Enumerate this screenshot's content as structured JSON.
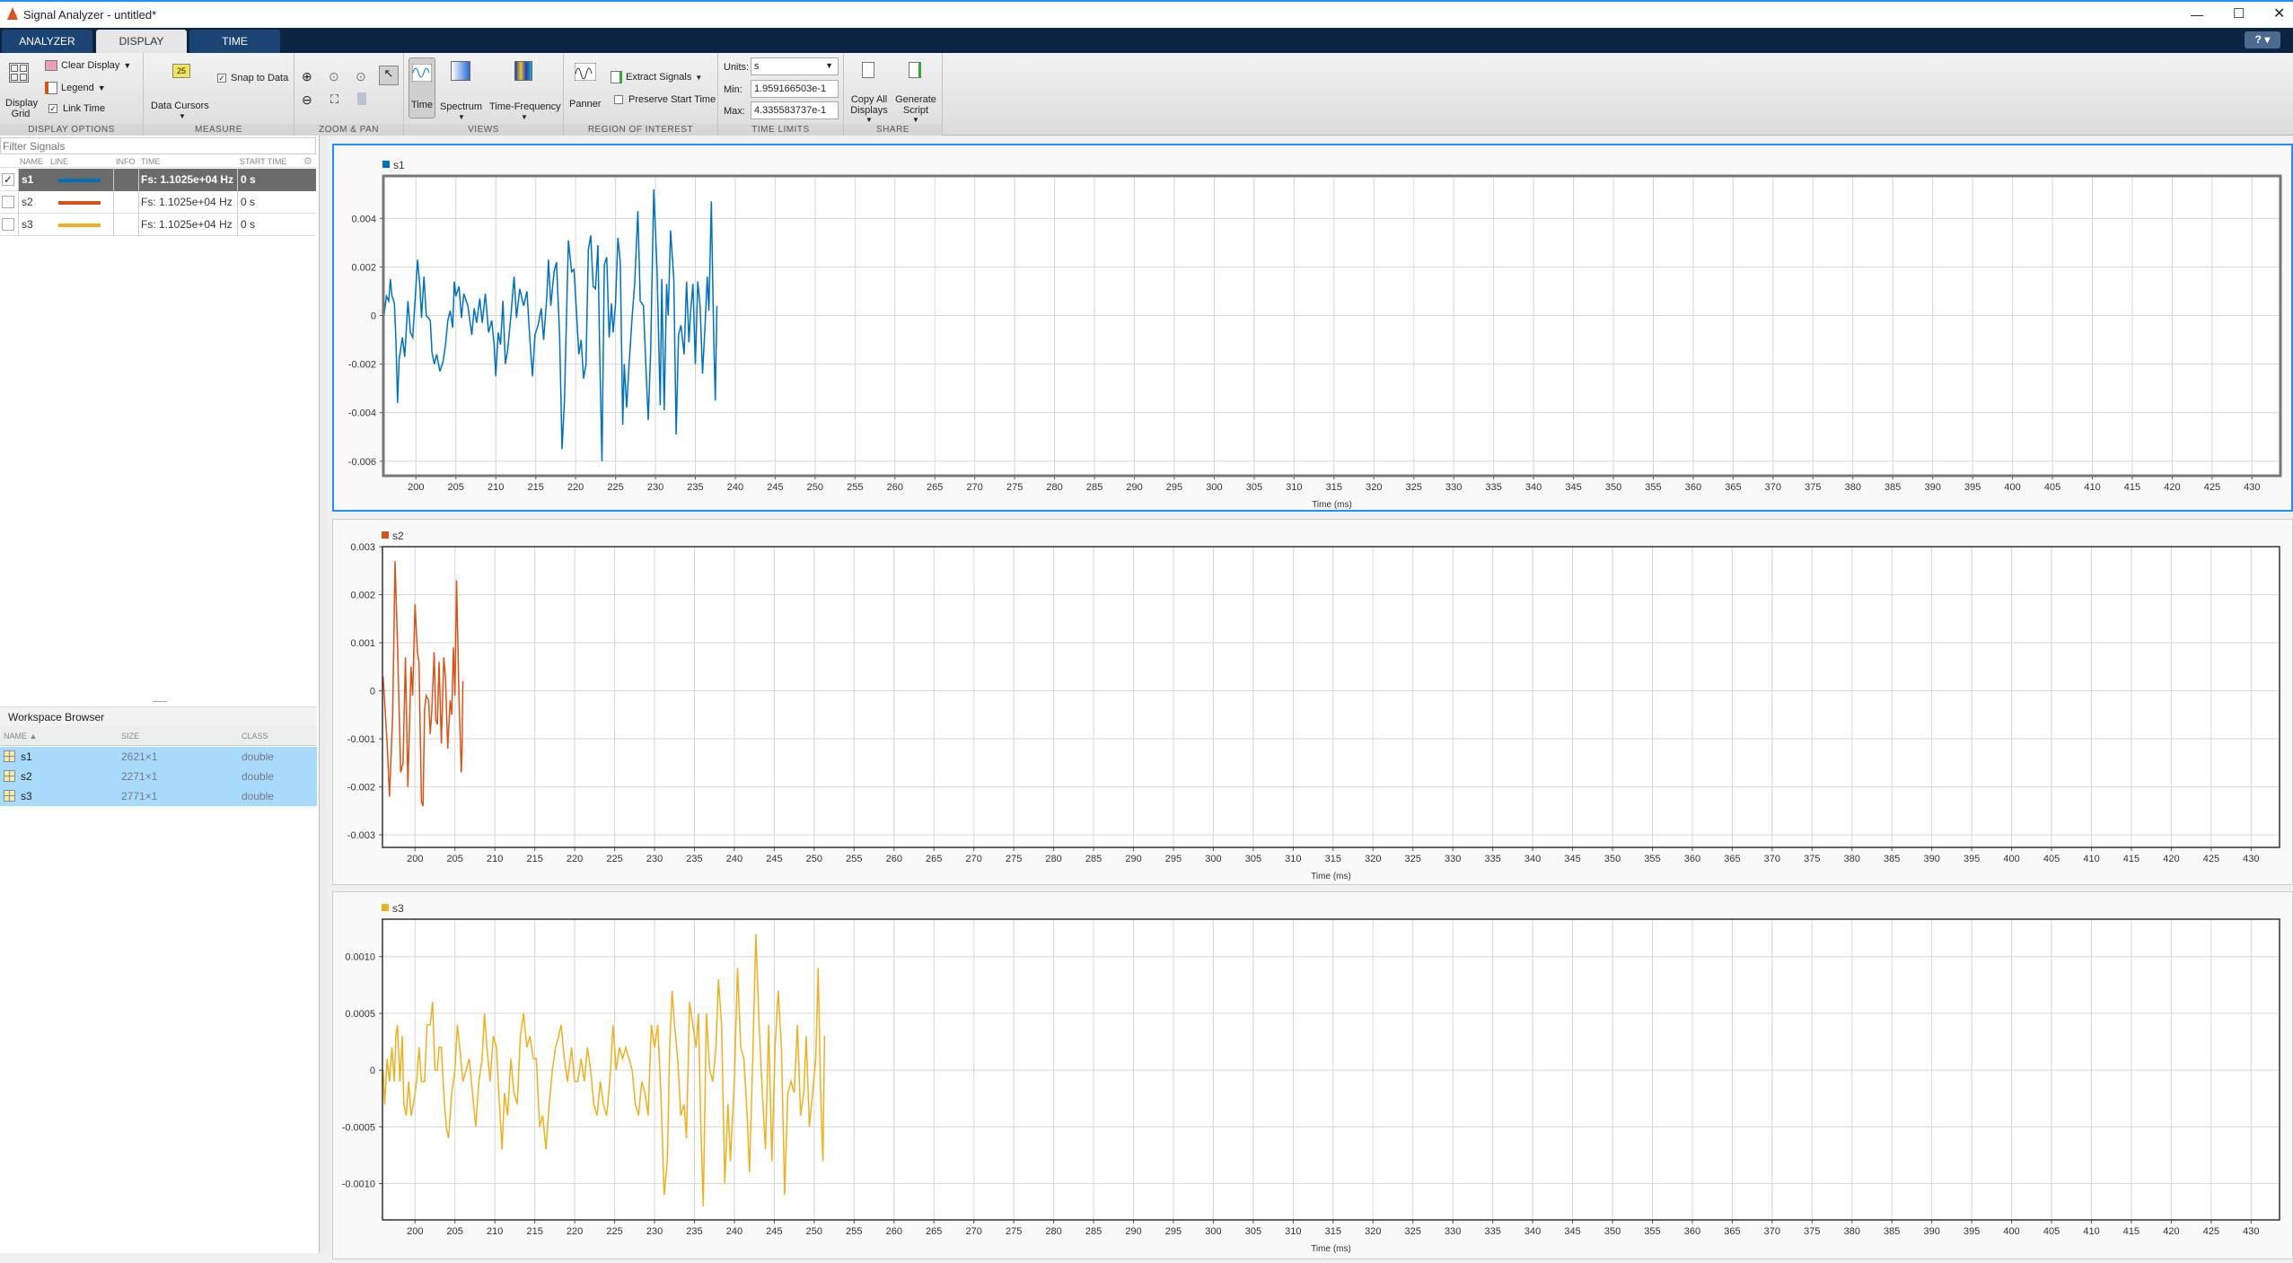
{
  "window": {
    "title": "Signal Analyzer - untitled*",
    "help": "?"
  },
  "tabs": [
    {
      "label": "ANALYZER"
    },
    {
      "label": "DISPLAY",
      "active": true
    },
    {
      "label": "TIME"
    }
  ],
  "toolbar": {
    "display_options": {
      "label": "DISPLAY OPTIONS",
      "display_grid": "Display Grid",
      "clear_display": "Clear Display",
      "legend": "Legend",
      "link_time": "Link Time",
      "link_time_checked": true
    },
    "measure": {
      "label": "MEASURE",
      "data_cursors": "Data Cursors",
      "cursor_icon_text": "25",
      "snap_to_data": "Snap to Data",
      "snap_checked": true
    },
    "zoom_pan": {
      "label": "ZOOM & PAN"
    },
    "views": {
      "label": "VIEWS",
      "time": "Time",
      "spectrum": "Spectrum",
      "time_frequency": "Time-Frequency"
    },
    "roi": {
      "label": "REGION OF INTEREST",
      "panner": "Panner",
      "extract_signals": "Extract Signals",
      "preserve_start_time": "Preserve Start Time",
      "preserve_checked": false
    },
    "time_limits": {
      "label": "TIME LIMITS",
      "units_label": "Units:",
      "units_value": "s",
      "min_label": "Min:",
      "min_value": "1.959166503e-1",
      "max_label": "Max:",
      "max_value": "4.335583737e-1"
    },
    "share": {
      "label": "SHARE",
      "copy_all": "Copy All Displays",
      "generate_script": "Generate Script"
    }
  },
  "signal_table": {
    "filter_placeholder": "Filter Signals",
    "columns": [
      "NAME",
      "LINE",
      "INFO",
      "TIME",
      "START TIME"
    ],
    "rows": [
      {
        "name": "s1",
        "color": "#0072bd",
        "time": "Fs: 1.1025e+04 Hz",
        "start": "0 s",
        "checked": true,
        "selected": true
      },
      {
        "name": "s2",
        "color": "#d95319",
        "time": "Fs: 1.1025e+04 Hz",
        "start": "0 s",
        "checked": false,
        "selected": false
      },
      {
        "name": "s3",
        "color": "#edb120",
        "time": "Fs: 1.1025e+04 Hz",
        "start": "0 s",
        "checked": false,
        "selected": false
      }
    ]
  },
  "workspace": {
    "title": "Workspace Browser",
    "columns": [
      "NAME ▲",
      "SIZE",
      "CLASS"
    ],
    "rows": [
      {
        "name": "s1",
        "size": "2621×1",
        "class": "double"
      },
      {
        "name": "s2",
        "size": "2271×1",
        "class": "double"
      },
      {
        "name": "s3",
        "size": "2771×1",
        "class": "double"
      }
    ]
  },
  "chart_data": [
    {
      "type": "line",
      "legend": "s1",
      "color": "#0072bd",
      "xlabel": "Time (ms)",
      "xlim": [
        195.92,
        433.56
      ],
      "ylim": [
        -0.0066,
        0.00575
      ],
      "xticks": [
        200,
        205,
        210,
        215,
        220,
        225,
        230,
        235,
        240,
        245,
        250,
        255,
        260,
        265,
        270,
        275,
        280,
        285,
        290,
        295,
        300,
        305,
        310,
        315,
        320,
        325,
        330,
        335,
        340,
        345,
        350,
        355,
        360,
        365,
        370,
        375,
        380,
        385,
        390,
        395,
        400,
        405,
        410,
        415,
        420,
        425,
        430
      ],
      "yticks": [
        -0.006,
        -0.004,
        -0.002,
        0,
        0.002,
        0.004
      ],
      "ytick_labels": [
        "-0.006",
        "-0.004",
        "-0.002",
        "0",
        "0.002",
        "0.004"
      ],
      "x": [
        196.0,
        196.3,
        196.6,
        196.8,
        197.0,
        197.3,
        197.5,
        197.7,
        197.9,
        198.3,
        198.6,
        199.0,
        199.3,
        199.6,
        200.0,
        200.2,
        200.5,
        200.7,
        201.0,
        201.3,
        201.8,
        202.0,
        202.3,
        202.6,
        203.0,
        203.4,
        203.7,
        204.0,
        204.3,
        204.6,
        204.8,
        205.0,
        205.4,
        205.7,
        206.0,
        206.5,
        207.0,
        207.3,
        207.6,
        208.0,
        208.3,
        208.7,
        209.1,
        209.5,
        209.8,
        210.0,
        210.3,
        210.6,
        210.9,
        211.2,
        211.5,
        211.9,
        212.3,
        212.6,
        213.0,
        213.5,
        213.9,
        214.3,
        214.6,
        214.9,
        215.3,
        215.7,
        216.0,
        216.4,
        216.6,
        216.9,
        217.3,
        217.6,
        218.0,
        218.3,
        218.6,
        219.1,
        219.5,
        219.8,
        220.1,
        220.4,
        220.7,
        221.0,
        221.3,
        221.6,
        221.9,
        222.2,
        222.5,
        222.8,
        223.0,
        223.3,
        223.6,
        223.9,
        224.2,
        224.5,
        224.7,
        225.0,
        225.3,
        225.6,
        225.9,
        226.1,
        226.4,
        226.7,
        227.1,
        227.4,
        227.8,
        228.1,
        228.5,
        228.8,
        229.1,
        229.4,
        229.8,
        230.2,
        230.6,
        230.8,
        231.1,
        231.4,
        231.6,
        231.9,
        232.3,
        232.6,
        232.9,
        233.2,
        233.6,
        233.9,
        234.2,
        234.4,
        234.7,
        235.0,
        235.3,
        235.6,
        235.9,
        236.2,
        236.5,
        236.7,
        237.0,
        237.3,
        237.5,
        237.7
      ],
      "y": [
        0,
        0.0008,
        0.0006,
        0.0015,
        0.0008,
        0.0005,
        -0.001,
        -0.0036,
        -0.0018,
        -0.0009,
        -0.0017,
        0.0006,
        -0.0007,
        -0.0009,
        0.0012,
        0.0023,
        0.0012,
        -0.0001,
        0.0016,
        0,
        -0.0002,
        -0.0015,
        -0.002,
        -0.0016,
        -0.0023,
        -0.0019,
        -0.0012,
        -0.0002,
        0.0002,
        -0.0005,
        0.0014,
        0.0008,
        0.0012,
        -0.0001,
        0.0009,
        0.0004,
        -0.0008,
        0.0003,
        -0.0003,
        0.0007,
        -0.0003,
        0.0009,
        -0.0007,
        -0.0002,
        -0.0012,
        -0.0025,
        -0.0007,
        -0.0012,
        0.0006,
        -0.002,
        -0.0014,
        0,
        0.0016,
        -0.0001,
        0.0011,
        0.0004,
        0.001,
        -0.0011,
        -0.0025,
        -0.0008,
        -0.0004,
        0.0003,
        -0.001,
        0.0008,
        0.0023,
        0.0004,
        0.0018,
        0.0022,
        -0.0008,
        -0.0055,
        -0.0035,
        0.0031,
        0.0018,
        0.0019,
        0.0002,
        -0.0016,
        -0.001,
        -0.0026,
        -0.002,
        0.0027,
        0.0033,
        0.0012,
        0.0011,
        0.0029,
        -0.0012,
        -0.006,
        0.0021,
        0.0024,
        -0.0009,
        0.0005,
        -0.0007,
        0.0005,
        0.0032,
        0.0022,
        -0.0045,
        -0.002,
        -0.0038,
        -0.002,
        0,
        0.0013,
        0.0043,
        0.0006,
        0.0004,
        -0.0021,
        -0.0043,
        -0.0015,
        0.0052,
        0.0019,
        -0.0037,
        0.0015,
        -0.0039,
        0.0013,
        0,
        0.0035,
        0.0015,
        -0.0049,
        -0.0008,
        -0.0004,
        -0.0016,
        0.0014,
        -0.0011,
        0.0001,
        0.0013,
        -0.002,
        0.0014,
        0.0004,
        -0.0024,
        -0.0005,
        0.0016,
        0.0002,
        0.0047,
        -0.0008,
        -0.0035,
        0.0004
      ]
    },
    {
      "type": "line",
      "legend": "s2",
      "color": "#d95319",
      "xlabel": "Time (ms)",
      "xlim": [
        195.92,
        433.56
      ],
      "ylim": [
        -0.00326,
        0.003
      ],
      "xticks": [
        200,
        205,
        210,
        215,
        220,
        225,
        230,
        235,
        240,
        245,
        250,
        255,
        260,
        265,
        270,
        275,
        280,
        285,
        290,
        295,
        300,
        305,
        310,
        315,
        320,
        325,
        330,
        335,
        340,
        345,
        350,
        355,
        360,
        365,
        370,
        375,
        380,
        385,
        390,
        395,
        400,
        405,
        410,
        415,
        420,
        425,
        430
      ],
      "yticks": [
        -0.003,
        -0.002,
        -0.001,
        0,
        0.001,
        0.002,
        0.003
      ],
      "ytick_labels": [
        "-0.003",
        "-0.002",
        "-0.001",
        "0",
        "0.001",
        "0.002",
        "0.003"
      ],
      "x": [
        196.0,
        196.5,
        196.8,
        197.2,
        197.5,
        197.8,
        198.2,
        198.5,
        198.8,
        199.1,
        199.5,
        199.7,
        200.0,
        200.3,
        200.5,
        200.8,
        201.0,
        201.2,
        201.4,
        201.7,
        201.9,
        202.1,
        202.4,
        202.6,
        202.8,
        203.0,
        203.3,
        203.6,
        203.8,
        204.1,
        204.4,
        204.6,
        204.8,
        205.0,
        205.2,
        205.5,
        205.8,
        205.9,
        206.0
      ],
      "y": [
        0.0003,
        -0.0011,
        -0.0022,
        -0.0005,
        0.0027,
        0.001,
        -0.0017,
        -0.0015,
        0.0007,
        -0.002,
        0.0005,
        -0.0001,
        0.0018,
        0.0008,
        0.0006,
        -0.0023,
        -0.0024,
        -0.0004,
        -0.0001,
        -0.0002,
        -0.0009,
        -0.0004,
        0.0008,
        -0.0006,
        -0.0007,
        0.0006,
        -0.0011,
        0.0007,
        0.0003,
        -0.0012,
        -0.0002,
        -0.0005,
        0.0009,
        -0.0001,
        0.0023,
        -0.0001,
        -0.0017,
        -0.0012,
        0.0002
      ]
    },
    {
      "type": "line",
      "legend": "s3",
      "color": "#edb120",
      "xlabel": "Time (ms)",
      "xlim": [
        195.92,
        433.56
      ],
      "ylim": [
        -0.00132,
        0.00133
      ],
      "xticks": [
        200,
        205,
        210,
        215,
        220,
        225,
        230,
        235,
        240,
        245,
        250,
        255,
        260,
        265,
        270,
        275,
        280,
        285,
        290,
        295,
        300,
        305,
        310,
        315,
        320,
        325,
        330,
        335,
        340,
        345,
        350,
        355,
        360,
        365,
        370,
        375,
        380,
        385,
        390,
        395,
        400,
        405,
        410,
        415,
        420,
        425,
        430
      ],
      "yticks": [
        -0.001,
        -0.0005,
        0,
        0.0005,
        0.001
      ],
      "ytick_labels": [
        "-0.0010",
        "-0.0005",
        "0",
        "0.0005",
        "0.0010"
      ],
      "x": [
        196.0,
        196.2,
        196.5,
        196.8,
        197.1,
        197.4,
        197.6,
        197.8,
        198.1,
        198.4,
        198.6,
        198.9,
        199.2,
        199.5,
        199.8,
        200.2,
        200.5,
        200.8,
        201.2,
        201.5,
        201.9,
        202.2,
        202.5,
        202.8,
        203.0,
        203.3,
        203.6,
        203.9,
        204.2,
        204.6,
        205.0,
        205.3,
        205.6,
        206.0,
        206.4,
        206.8,
        207.2,
        207.6,
        208.0,
        208.4,
        208.7,
        209.0,
        209.4,
        209.8,
        210.2,
        210.5,
        210.9,
        211.2,
        211.6,
        212.0,
        212.4,
        212.8,
        213.2,
        213.6,
        214.0,
        214.4,
        214.8,
        215.2,
        215.6,
        216.0,
        216.4,
        216.8,
        217.2,
        217.6,
        218.0,
        218.3,
        218.7,
        219.1,
        219.6,
        220.0,
        220.4,
        220.8,
        221.2,
        221.6,
        222.0,
        222.4,
        222.8,
        223.2,
        223.6,
        224.0,
        224.4,
        224.8,
        225.2,
        225.6,
        226.0,
        226.4,
        226.8,
        227.2,
        227.6,
        228.0,
        228.4,
        228.8,
        229.2,
        229.6,
        230.0,
        230.4,
        230.8,
        231.2,
        231.6,
        231.9,
        232.2,
        232.5,
        232.9,
        233.3,
        233.7,
        234.0,
        234.4,
        234.8,
        235.2,
        235.5,
        235.8,
        236.1,
        236.5,
        236.9,
        237.3,
        237.7,
        238.0,
        238.4,
        238.8,
        239.2,
        239.5,
        240.0,
        240.4,
        240.8,
        241.2,
        241.6,
        241.9,
        242.3,
        242.7,
        243.1,
        243.5,
        243.9,
        244.3,
        244.7,
        245.1,
        245.5,
        245.9,
        246.3,
        246.7,
        247.1,
        247.5,
        247.9,
        248.3,
        248.7,
        249.0,
        249.4,
        249.8,
        250.2,
        250.5,
        250.8,
        251.1,
        251.3
      ],
      "y": [
        0,
        -0.0003,
        0.0001,
        -0.0001,
        0.0002,
        -0.0001,
        0.0003,
        0.0004,
        -0.0001,
        0.0003,
        -0.0003,
        -0.0004,
        -0.0001,
        -0.0004,
        -0.0003,
        -0.0001,
        0.0002,
        -0.0001,
        -0.0001,
        0.0004,
        0.0004,
        0.0006,
        0,
        0,
        0.0002,
        0.0002,
        -0.0002,
        -0.0005,
        -0.0006,
        -0.0002,
        0,
        0.0004,
        0.0002,
        -0.0001,
        0,
        0.0001,
        -0.0002,
        -0.0005,
        -0.0001,
        0.0001,
        0.0005,
        0.0002,
        -0.0001,
        0.0003,
        0.0002,
        -0.0002,
        -0.0007,
        -0.0002,
        -0.0004,
        0.0001,
        -0.0002,
        -0.0003,
        0.0003,
        0.0005,
        0.0002,
        0.0003,
        0.0001,
        0.0001,
        -0.0005,
        -0.0004,
        -0.0007,
        -0.0003,
        0,
        0.0002,
        0.0003,
        0.0004,
        0.0001,
        -0.0001,
        0.0002,
        -0.0001,
        -0.0001,
        0.0001,
        -0.0001,
        0.0002,
        0,
        -0.0003,
        -0.0004,
        -0.0001,
        -0.0003,
        -0.0004,
        -0.0001,
        0.0004,
        0,
        0.0002,
        0.0001,
        0.0002,
        0.0001,
        0,
        -0.0003,
        -0.0004,
        -0.0001,
        -0.0002,
        -0.0004,
        0.0004,
        0.0002,
        0.0004,
        -0.0002,
        -0.0011,
        -0.0008,
        0.0002,
        0.0007,
        0.0004,
        0.0001,
        -0.0004,
        -0.0003,
        -0.0006,
        0.0006,
        0.0004,
        0.0002,
        0.0005,
        -0.0005,
        -0.0012,
        0.0005,
        0,
        -0.0001,
        0.0002,
        0.0008,
        0.0004,
        -0.001,
        -0.0003,
        -0.0008,
        -0.0001,
        0.0009,
        0.0002,
        0.0001,
        -0.0004,
        -0.0009,
        0.0001,
        0.0012,
        0.0004,
        -0.0002,
        -0.0007,
        0.0004,
        -0.0008,
        0.0002,
        0.0007,
        0.0002,
        -0.0011,
        -0.0002,
        -0.0001,
        -0.0002,
        0.0004,
        -0.0004,
        -0.0002,
        0.0003,
        -0.0005,
        -0.0002,
        0.0001,
        0.0009,
        -0.0002,
        -0.0008,
        0.0003
      ]
    }
  ]
}
